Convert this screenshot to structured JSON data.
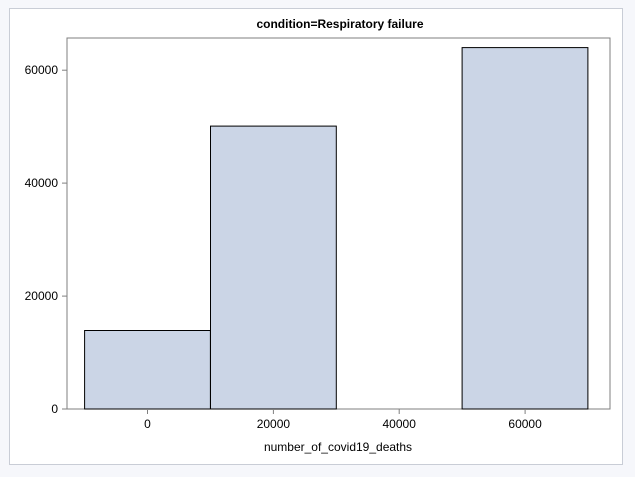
{
  "chart_data": {
    "type": "bar",
    "title": "condition=Respiratory failure",
    "xlabel": "number_of_covid19_deaths",
    "ylabel": "",
    "bins": [
      {
        "x_start": -10000,
        "x_end": 10000,
        "value": 13900
      },
      {
        "x_start": 10000,
        "x_end": 30000,
        "value": 50100
      },
      {
        "x_start": 30000,
        "x_end": 50000,
        "value": 0
      },
      {
        "x_start": 50000,
        "x_end": 70000,
        "value": 64000
      }
    ],
    "x_ticks": [
      0,
      20000,
      40000,
      60000
    ],
    "x_tick_labels": [
      "0",
      "20000",
      "40000",
      "60000"
    ],
    "y_ticks": [
      0,
      20000,
      40000,
      60000
    ],
    "y_tick_labels": [
      "0",
      "20000",
      "40000",
      "60000"
    ],
    "xlim": [
      -12800,
      73500
    ],
    "ylim": [
      0,
      65700
    ],
    "grid": false,
    "legend": "none"
  },
  "colors": {
    "bar_fill": "#cbd5e6",
    "bar_stroke": "#000000",
    "axis": "#7f7f7f",
    "frame_border": "#c9cdd6"
  }
}
